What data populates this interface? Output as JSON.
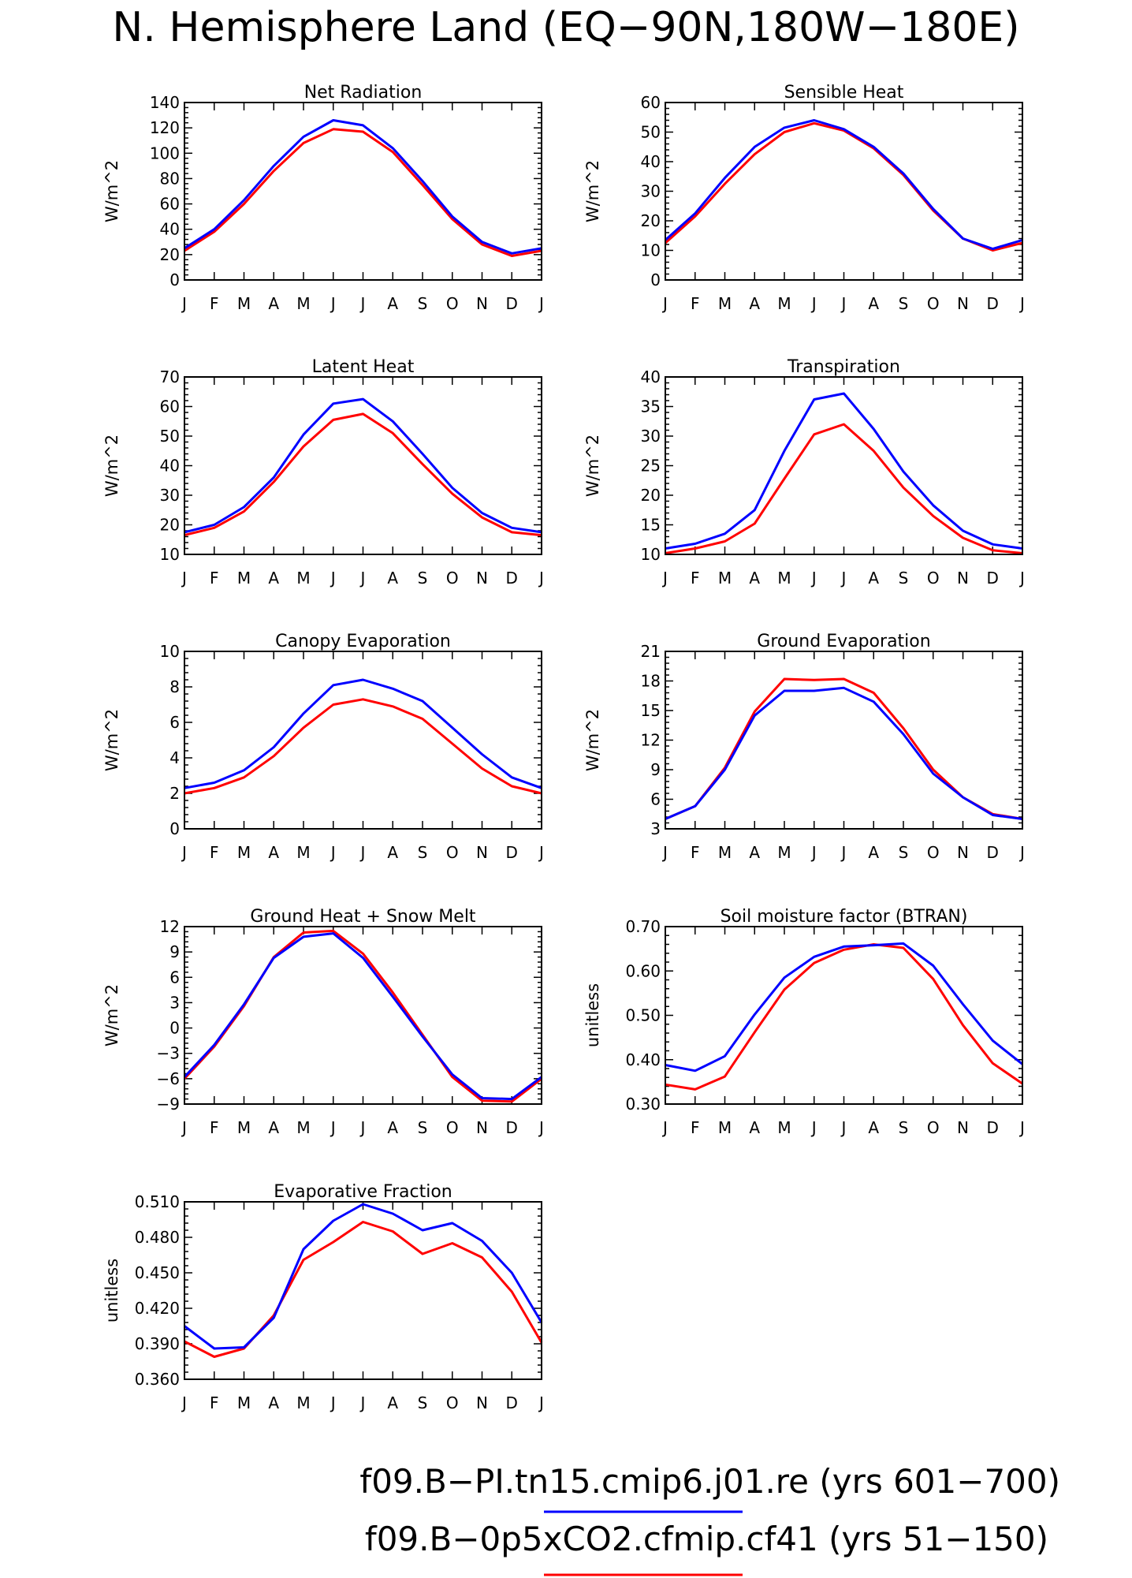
{
  "figure_title": "N. Hemisphere Land (EQ−90N,180W−180E)",
  "legend": [
    {
      "label": "f09.B−PI.tn15.cmip6.j01.re (yrs 601−700)",
      "color": "#0000ff"
    },
    {
      "label": "f09.B−0p5xCO2.cfmip.cf41 (yrs 51−150)",
      "color": "#ff0000"
    }
  ],
  "chart_data": [
    {
      "type": "line",
      "title": "Net Radiation",
      "ylabel": "W/m^2",
      "xlabel": "",
      "categories": [
        "J",
        "F",
        "M",
        "A",
        "M",
        "J",
        "J",
        "A",
        "S",
        "O",
        "N",
        "D",
        "J"
      ],
      "ylim": [
        0,
        140
      ],
      "yticks": [
        0,
        20,
        40,
        60,
        80,
        100,
        120,
        140
      ],
      "ytick_labels": [
        "0",
        "20",
        "40",
        "60",
        "80",
        "100",
        "120",
        "140"
      ],
      "series": [
        {
          "color": "#0000ff",
          "values": [
            25,
            40,
            63,
            90,
            113,
            126,
            122,
            104,
            78,
            50,
            30,
            21,
            25
          ]
        },
        {
          "color": "#ff0000",
          "values": [
            23,
            38,
            60,
            86,
            108,
            119,
            117,
            101,
            75,
            48,
            28,
            19,
            23
          ]
        }
      ]
    },
    {
      "type": "line",
      "title": "Sensible Heat",
      "ylabel": "W/m^2",
      "xlabel": "",
      "categories": [
        "J",
        "F",
        "M",
        "A",
        "M",
        "J",
        "J",
        "A",
        "S",
        "O",
        "N",
        "D",
        "J"
      ],
      "ylim": [
        0,
        60
      ],
      "yticks": [
        0,
        10,
        20,
        30,
        40,
        50,
        60
      ],
      "ytick_labels": [
        "0",
        "10",
        "20",
        "30",
        "40",
        "50",
        "60"
      ],
      "series": [
        {
          "color": "#0000ff",
          "values": [
            13.5,
            22.5,
            34.5,
            45,
            51.5,
            54,
            51,
            45,
            36,
            24,
            14,
            10.5,
            13.5
          ]
        },
        {
          "color": "#ff0000",
          "values": [
            12.5,
            21.5,
            32.5,
            42.5,
            50,
            53,
            50.5,
            44.5,
            35.5,
            23.5,
            14,
            10,
            12.5
          ]
        }
      ]
    },
    {
      "type": "line",
      "title": "Latent Heat",
      "ylabel": "W/m^2",
      "xlabel": "",
      "categories": [
        "J",
        "F",
        "M",
        "A",
        "M",
        "J",
        "J",
        "A",
        "S",
        "O",
        "N",
        "D",
        "J"
      ],
      "ylim": [
        10,
        70
      ],
      "yticks": [
        10,
        20,
        30,
        40,
        50,
        60,
        70
      ],
      "ytick_labels": [
        "10",
        "20",
        "30",
        "40",
        "50",
        "60",
        "70"
      ],
      "series": [
        {
          "color": "#0000ff",
          "values": [
            17.5,
            20,
            26,
            36,
            50.5,
            61,
            62.5,
            55,
            44,
            32.5,
            24,
            19,
            17.5
          ]
        },
        {
          "color": "#ff0000",
          "values": [
            16.5,
            19,
            24.5,
            34.5,
            46.5,
            55.5,
            57.5,
            51,
            40.5,
            30.5,
            22.5,
            17.5,
            16.5
          ]
        }
      ]
    },
    {
      "type": "line",
      "title": "Transpiration",
      "ylabel": "W/m^2",
      "xlabel": "",
      "categories": [
        "J",
        "F",
        "M",
        "A",
        "M",
        "J",
        "J",
        "A",
        "S",
        "O",
        "N",
        "D",
        "J"
      ],
      "ylim": [
        10,
        40
      ],
      "yticks": [
        10,
        15,
        20,
        25,
        30,
        35,
        40
      ],
      "ytick_labels": [
        "10",
        "15",
        "20",
        "25",
        "30",
        "35",
        "40"
      ],
      "series": [
        {
          "color": "#0000ff",
          "values": [
            11,
            11.8,
            13.5,
            17.5,
            27.5,
            36.2,
            37.2,
            31.2,
            24,
            18.3,
            14,
            11.7,
            11
          ]
        },
        {
          "color": "#ff0000",
          "values": [
            10.2,
            11,
            12.2,
            15.2,
            22.8,
            30.3,
            32,
            27.5,
            21.3,
            16.5,
            12.8,
            10.7,
            10.2
          ]
        }
      ]
    },
    {
      "type": "line",
      "title": "Canopy Evaporation",
      "ylabel": "W/m^2",
      "xlabel": "",
      "categories": [
        "J",
        "F",
        "M",
        "A",
        "M",
        "J",
        "J",
        "A",
        "S",
        "O",
        "N",
        "D",
        "J"
      ],
      "ylim": [
        0,
        10
      ],
      "yticks": [
        0,
        2,
        4,
        6,
        8,
        10
      ],
      "ytick_labels": [
        "0",
        "2",
        "4",
        "6",
        "8",
        "10"
      ],
      "series": [
        {
          "color": "#0000ff",
          "values": [
            2.3,
            2.6,
            3.3,
            4.6,
            6.5,
            8.1,
            8.4,
            7.9,
            7.2,
            5.7,
            4.2,
            2.9,
            2.3
          ]
        },
        {
          "color": "#ff0000",
          "values": [
            2.0,
            2.3,
            2.9,
            4.1,
            5.7,
            7.0,
            7.3,
            6.9,
            6.2,
            4.8,
            3.4,
            2.4,
            2.0
          ]
        }
      ]
    },
    {
      "type": "line",
      "title": "Ground Evaporation",
      "ylabel": "W/m^2",
      "xlabel": "",
      "categories": [
        "J",
        "F",
        "M",
        "A",
        "M",
        "J",
        "J",
        "A",
        "S",
        "O",
        "N",
        "D",
        "J"
      ],
      "ylim": [
        3,
        21
      ],
      "yticks": [
        3,
        6,
        9,
        12,
        15,
        18,
        21
      ],
      "ytick_labels": [
        "3",
        "6",
        "9",
        "12",
        "15",
        "18",
        "21"
      ],
      "series": [
        {
          "color": "#0000ff",
          "values": [
            4,
            5.3,
            9,
            14.5,
            17,
            17,
            17.3,
            15.9,
            12.6,
            8.6,
            6.2,
            4.4,
            4
          ]
        },
        {
          "color": "#ff0000",
          "values": [
            4,
            5.3,
            9.2,
            14.9,
            18.2,
            18.1,
            18.2,
            16.8,
            13.2,
            9,
            6.2,
            4.5,
            4
          ]
        }
      ]
    },
    {
      "type": "line",
      "title": "Ground Heat + Snow Melt",
      "ylabel": "W/m^2",
      "xlabel": "",
      "categories": [
        "J",
        "F",
        "M",
        "A",
        "M",
        "J",
        "J",
        "A",
        "S",
        "O",
        "N",
        "D",
        "J"
      ],
      "ylim": [
        -9,
        12
      ],
      "yticks": [
        -9,
        -6,
        -3,
        0,
        3,
        6,
        9,
        12
      ],
      "ytick_labels": [
        "−9",
        "−6",
        "−3",
        "0",
        "3",
        "6",
        "9",
        "12"
      ],
      "series": [
        {
          "color": "#0000ff",
          "values": [
            -5.8,
            -2,
            2.8,
            8.3,
            10.8,
            11.2,
            8.3,
            3.7,
            -1,
            -5.5,
            -8.3,
            -8.4,
            -5.8
          ]
        },
        {
          "color": "#ff0000",
          "values": [
            -6,
            -2.2,
            2.6,
            8.4,
            11.3,
            11.5,
            8.8,
            4.2,
            -0.8,
            -5.8,
            -8.6,
            -8.7,
            -6
          ]
        }
      ]
    },
    {
      "type": "line",
      "title": "Soil moisture factor (BTRAN)",
      "ylabel": "unitless",
      "xlabel": "",
      "categories": [
        "J",
        "F",
        "M",
        "A",
        "M",
        "J",
        "J",
        "A",
        "S",
        "O",
        "N",
        "D",
        "J"
      ],
      "ylim": [
        0.3,
        0.7
      ],
      "yticks": [
        0.3,
        0.4,
        0.5,
        0.6,
        0.7
      ],
      "ytick_labels": [
        "0.30",
        "0.40",
        "0.50",
        "0.60",
        "0.70"
      ],
      "series": [
        {
          "color": "#0000ff",
          "values": [
            0.388,
            0.375,
            0.408,
            0.502,
            0.585,
            0.632,
            0.655,
            0.658,
            0.662,
            0.612,
            0.525,
            0.443,
            0.39
          ]
        },
        {
          "color": "#ff0000",
          "values": [
            0.344,
            0.333,
            0.362,
            0.462,
            0.558,
            0.618,
            0.648,
            0.66,
            0.652,
            0.582,
            0.478,
            0.392,
            0.346
          ]
        }
      ]
    },
    {
      "type": "line",
      "title": "Evaporative Fraction",
      "ylabel": "unitless",
      "xlabel": "",
      "categories": [
        "J",
        "F",
        "M",
        "A",
        "M",
        "J",
        "J",
        "A",
        "S",
        "O",
        "N",
        "D",
        "J"
      ],
      "ylim": [
        0.36,
        0.51
      ],
      "yticks": [
        0.36,
        0.39,
        0.42,
        0.45,
        0.48,
        0.51
      ],
      "ytick_labels": [
        "0.360",
        "0.390",
        "0.420",
        "0.450",
        "0.480",
        "0.510"
      ],
      "series": [
        {
          "color": "#0000ff",
          "values": [
            0.405,
            0.386,
            0.387,
            0.412,
            0.47,
            0.494,
            0.508,
            0.5,
            0.486,
            0.492,
            0.477,
            0.45,
            0.408
          ]
        },
        {
          "color": "#ff0000",
          "values": [
            0.392,
            0.379,
            0.386,
            0.414,
            0.461,
            0.476,
            0.493,
            0.485,
            0.466,
            0.475,
            0.463,
            0.434,
            0.391
          ]
        }
      ]
    }
  ]
}
